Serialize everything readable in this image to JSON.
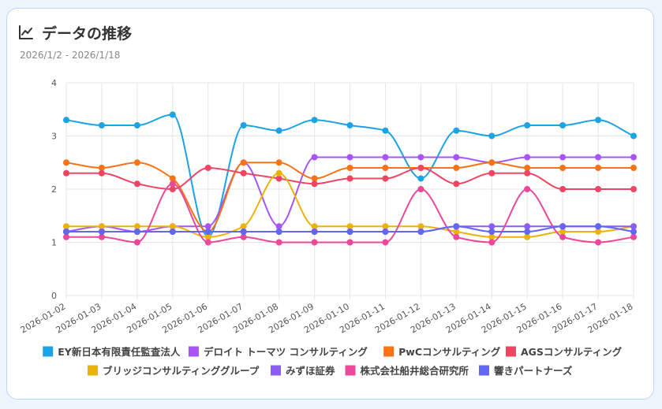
{
  "card": {
    "title": "データの推移",
    "subtitle": "2026/1/2 - 2026/1/18",
    "icon": "chart-line-icon"
  },
  "chart_data": {
    "type": "line",
    "title": "データの推移",
    "xlabel": "",
    "ylabel": "",
    "ylim": [
      0,
      4
    ],
    "yticks": [
      0,
      1,
      2,
      3,
      4
    ],
    "grid": true,
    "legend": "bottom",
    "categories": [
      "2026-01-02",
      "2026-01-03",
      "2026-01-04",
      "2026-01-05",
      "2026-01-06",
      "2026-01-07",
      "2026-01-08",
      "2026-01-09",
      "2026-01-10",
      "2026-01-11",
      "2026-01-12",
      "2026-01-13",
      "2026-01-14",
      "2026-01-15",
      "2026-01-16",
      "2026-01-17",
      "2026-01-18"
    ],
    "series": [
      {
        "name": "EY新日本有限責任監査法人",
        "color": "#1ca3e3",
        "values": [
          3.3,
          3.2,
          3.2,
          3.4,
          1.1,
          3.2,
          3.1,
          3.3,
          3.2,
          3.1,
          2.2,
          3.1,
          3.0,
          3.2,
          3.2,
          3.3,
          3.0
        ]
      },
      {
        "name": "デロイト トーマツ コンサルティング",
        "color": "#a855f7",
        "values": [
          1.2,
          1.3,
          1.2,
          1.3,
          1.3,
          2.5,
          1.3,
          2.6,
          2.6,
          2.6,
          2.6,
          2.6,
          2.5,
          2.6,
          2.6,
          2.6,
          2.6
        ]
      },
      {
        "name": "PwCコンサルティング",
        "color": "#f97316",
        "values": [
          2.5,
          2.4,
          2.5,
          2.2,
          1.2,
          2.5,
          2.5,
          2.2,
          2.4,
          2.4,
          2.4,
          2.4,
          2.5,
          2.4,
          2.4,
          2.4,
          2.4
        ]
      },
      {
        "name": "AGSコンサルティング",
        "color": "#ef4462",
        "values": [
          2.3,
          2.3,
          2.1,
          2.0,
          2.4,
          2.3,
          2.2,
          2.1,
          2.2,
          2.2,
          2.4,
          2.1,
          2.3,
          2.3,
          2.0,
          2.0,
          2.0
        ]
      },
      {
        "name": "ブリッジコンサルティンググループ",
        "color": "#eab308",
        "values": [
          1.3,
          1.3,
          1.3,
          1.3,
          1.1,
          1.3,
          2.3,
          1.3,
          1.3,
          1.3,
          1.3,
          1.2,
          1.1,
          1.1,
          1.2,
          1.2,
          1.3
        ]
      },
      {
        "name": "みずほ証券",
        "color": "#8b5cf6",
        "values": [
          1.2,
          1.2,
          1.2,
          1.2,
          1.2,
          1.2,
          1.2,
          1.2,
          1.2,
          1.2,
          1.2,
          1.3,
          1.3,
          1.3,
          1.3,
          1.3,
          1.3
        ]
      },
      {
        "name": "株式会社船井総合研究所",
        "color": "#ec4899",
        "values": [
          1.1,
          1.1,
          1.0,
          2.1,
          1.0,
          1.1,
          1.0,
          1.0,
          1.0,
          1.0,
          2.0,
          1.1,
          1.0,
          2.0,
          1.1,
          1.0,
          1.1
        ]
      },
      {
        "name": "響きパートナーズ",
        "color": "#6366f1",
        "values": [
          1.2,
          1.2,
          1.2,
          1.2,
          1.2,
          1.2,
          1.2,
          1.2,
          1.2,
          1.2,
          1.2,
          1.3,
          1.2,
          1.2,
          1.3,
          1.3,
          1.2
        ]
      }
    ]
  }
}
